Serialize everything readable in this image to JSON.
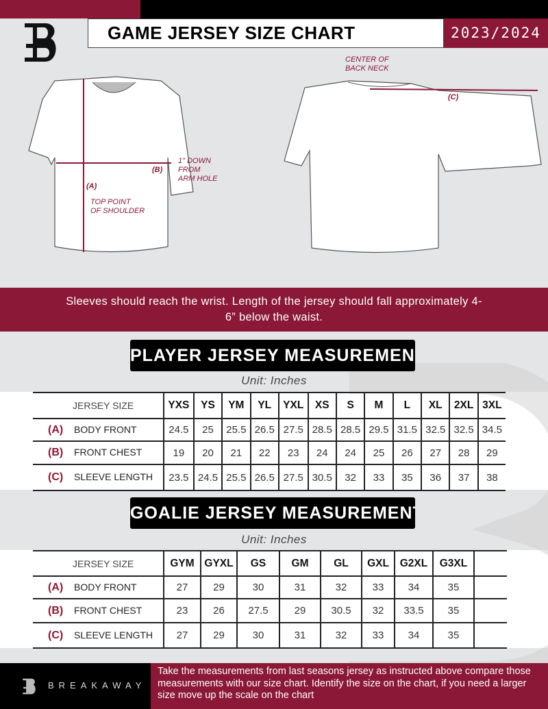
{
  "header": {
    "title": "GAME JERSEY SIZE CHART",
    "season": "2023/2024"
  },
  "diagram": {
    "center_back_neck": "CENTER OF\nBACK NECK",
    "label_c": "(C)",
    "label_b": "(B)",
    "label_a": "(A)",
    "one_inch_down": "1\" DOWN\nFROM\nARM HOLE",
    "top_point": "TOP POINT\nOF SHOULDER"
  },
  "note": "Sleeves should reach the wrist. Length of the jersey should fall approximately 4-6” below the waist.",
  "player": {
    "title": "PLAYER JERSEY MEASUREMENTS",
    "unit": "Unit: Inches",
    "size_header": "JERSEY SIZE",
    "sizes": [
      "YXS",
      "YS",
      "YM",
      "YL",
      "YXL",
      "XS",
      "S",
      "M",
      "L",
      "XL",
      "2XL",
      "3XL"
    ],
    "rows": [
      {
        "key": "(A)",
        "label": "BODY FRONT",
        "values": [
          "24.5",
          "25",
          "25.5",
          "26.5",
          "27.5",
          "28.5",
          "28.5",
          "29.5",
          "31.5",
          "32.5",
          "32.5",
          "34.5"
        ]
      },
      {
        "key": "(B)",
        "label": "FRONT CHEST",
        "values": [
          "19",
          "20",
          "21",
          "22",
          "23",
          "24",
          "24",
          "25",
          "26",
          "27",
          "28",
          "29"
        ]
      },
      {
        "key": "(C)",
        "label": "SLEEVE LENGTH",
        "values": [
          "23.5",
          "24.5",
          "25.5",
          "26.5",
          "27.5",
          "30.5",
          "32",
          "33",
          "35",
          "36",
          "37",
          "38"
        ]
      }
    ]
  },
  "goalie": {
    "title": "GOALIE JERSEY MEASUREMENTS",
    "unit": "Unit: Inches",
    "size_header": "JERSEY SIZE",
    "sizes": [
      "GYM",
      "GYXL",
      "GS",
      "GM",
      "GL",
      "GXL",
      "G2XL",
      "G3XL",
      ""
    ],
    "rows": [
      {
        "key": "(A)",
        "label": "BODY FRONT",
        "values": [
          "27",
          "29",
          "30",
          "31",
          "32",
          "33",
          "34",
          "35",
          ""
        ]
      },
      {
        "key": "(B)",
        "label": "FRONT CHEST",
        "values": [
          "23",
          "26",
          "27.5",
          "29",
          "30.5",
          "32",
          "33.5",
          "35",
          ""
        ]
      },
      {
        "key": "(C)",
        "label": "SLEEVE LENGTH",
        "values": [
          "27",
          "29",
          "30",
          "31",
          "32",
          "33",
          "34",
          "35",
          ""
        ]
      }
    ]
  },
  "footer": {
    "brand": "BREAKAWAY",
    "instructions": "Take the measurements from last seasons jersey as instructed above compare those measurements  with our size chart. Identify the size on the chart, if you need a larger size move up the scale on the chart"
  },
  "colors": {
    "accent": "#8a1836",
    "dark": "#000000",
    "background": "#e4e5e6"
  }
}
